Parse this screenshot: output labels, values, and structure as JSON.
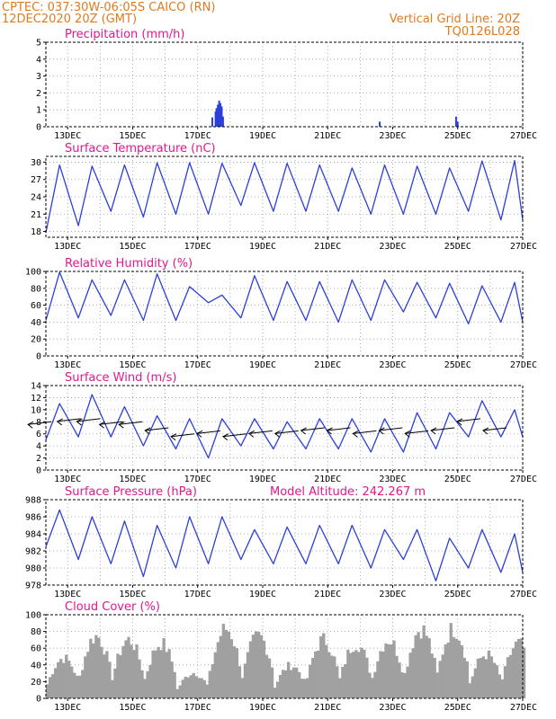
{
  "header": {
    "line1": "CPTEC:   037:30W-06:05S  CAICO (RN)",
    "line2": "12DEC2020 20Z (GMT)",
    "grid_note": "Vertical Grid Line: 20Z",
    "code": "TQ0126L028"
  },
  "colors": {
    "header": "#e07a1f",
    "title": "#e0188f",
    "line": "#2b3fd8",
    "cloud": "#a0a0a0",
    "arrow": "#000000"
  },
  "chart_data": [
    {
      "id": "precip",
      "type": "bar",
      "title": "Precipitation (mm/h)",
      "ylim": [
        0,
        5
      ],
      "yticks": [
        0,
        1,
        2,
        3,
        4,
        5
      ],
      "xlim": [
        12.33,
        27
      ],
      "xticks": [
        "13DEC",
        "15DEC",
        "17DEC",
        "19DEC",
        "21DEC",
        "23DEC",
        "25DEC",
        "27DEC"
      ],
      "x": [
        17.45,
        17.55,
        17.58,
        17.62,
        17.66,
        17.7,
        17.74,
        17.78,
        22.6,
        24.95,
        25.0
      ],
      "values": [
        0.55,
        0.9,
        1.1,
        1.3,
        1.55,
        1.4,
        1.2,
        0.6,
        0.3,
        0.6,
        0.3
      ]
    },
    {
      "id": "temp",
      "type": "line",
      "title": "Surface Temperature (nC)",
      "ylim": [
        17,
        31
      ],
      "yticks": [
        18,
        21,
        24,
        27,
        30
      ],
      "xlim": [
        12.33,
        27
      ],
      "xticks": [
        "13DEC",
        "15DEC",
        "17DEC",
        "19DEC",
        "21DEC",
        "23DEC",
        "25DEC",
        "27DEC"
      ],
      "daily_max": [
        29.5,
        29.3,
        29.5,
        29.9,
        29.9,
        29.8,
        29.9,
        29.8,
        29.5,
        29.0,
        29.5,
        29.3,
        29.0,
        30.2,
        30.3
      ],
      "daily_min": [
        17.8,
        19.0,
        21.5,
        20.5,
        21.0,
        21.0,
        22.5,
        21.5,
        21.5,
        21.5,
        21.0,
        21.0,
        21.0,
        21.5,
        20.0
      ]
    },
    {
      "id": "rh",
      "type": "line",
      "title": "Relative Humidity (%)",
      "ylim": [
        0,
        100
      ],
      "yticks": [
        0,
        20,
        40,
        60,
        80,
        100
      ],
      "xlim": [
        12.33,
        27
      ],
      "xticks": [
        "13DEC",
        "15DEC",
        "17DEC",
        "19DEC",
        "21DEC",
        "23DEC",
        "25DEC",
        "27DEC"
      ],
      "daily_max": [
        99,
        90,
        90,
        97,
        82,
        72,
        95,
        88,
        88,
        90,
        90,
        87,
        86,
        83,
        87
      ],
      "daily_min": [
        42,
        45,
        48,
        42,
        42,
        63,
        45,
        42,
        42,
        40,
        42,
        52,
        45,
        38,
        40
      ]
    },
    {
      "id": "wind",
      "type": "line",
      "title": "Surface Wind (m/s)",
      "ylim": [
        0,
        14
      ],
      "yticks": [
        0,
        2,
        4,
        6,
        8,
        10,
        12,
        14
      ],
      "xlim": [
        12.33,
        27
      ],
      "xticks": [
        "13DEC",
        "15DEC",
        "17DEC",
        "19DEC",
        "21DEC",
        "23DEC",
        "25DEC",
        "27DEC"
      ],
      "daily_max": [
        11.0,
        12.5,
        10.5,
        9.0,
        8.5,
        8.5,
        8.5,
        8.0,
        8.5,
        8.5,
        8.5,
        9.5,
        9.5,
        11.5,
        10.0
      ],
      "daily_min": [
        5.0,
        5.5,
        5.5,
        4.0,
        3.5,
        2.0,
        4.0,
        3.5,
        3.5,
        3.5,
        3.0,
        3.0,
        3.5,
        5.5,
        5.5
      ],
      "arrows_x": [
        12.5,
        13.4,
        14.0,
        14.7,
        15.3,
        16.1,
        16.9,
        17.7,
        18.5,
        19.3,
        20.1,
        20.9,
        21.7,
        22.5,
        23.3,
        24.1,
        24.9,
        25.7,
        26.5
      ],
      "arrows_y": [
        8.0,
        8.5,
        8.5,
        8.0,
        8.0,
        7.0,
        6.0,
        6.5,
        6.0,
        6.5,
        6.5,
        7.0,
        7.0,
        6.5,
        7.0,
        6.5,
        7.0,
        8.5,
        7.0
      ]
    },
    {
      "id": "pressure",
      "type": "line",
      "title": "Surface Pressure (hPa)",
      "subtitle": "Model Altitude: 242.267 m",
      "ylim": [
        978,
        988
      ],
      "yticks": [
        978,
        980,
        982,
        984,
        986,
        988
      ],
      "xlim": [
        12.33,
        27
      ],
      "xticks": [
        "13DEC",
        "15DEC",
        "17DEC",
        "19DEC",
        "21DEC",
        "23DEC",
        "25DEC",
        "27DEC"
      ],
      "daily_max": [
        986.8,
        986.0,
        985.5,
        985.0,
        986.0,
        986.0,
        984.5,
        984.8,
        985.0,
        985.0,
        984.5,
        984.5,
        983.5,
        984.5,
        984.0
      ],
      "daily_min": [
        982.5,
        981.0,
        980.5,
        979.0,
        980.0,
        980.5,
        981.0,
        980.5,
        980.5,
        980.5,
        980.0,
        981.0,
        978.5,
        980.0,
        979.5
      ]
    },
    {
      "id": "cloud",
      "type": "area",
      "title": "Cloud Cover (%)",
      "ylim": [
        0,
        100
      ],
      "yticks": [
        0,
        20,
        40,
        60,
        80,
        100
      ],
      "xlim": [
        12.33,
        27
      ],
      "xticks": [
        "13DEC",
        "15DEC",
        "17DEC",
        "19DEC",
        "21DEC",
        "23DEC",
        "25DEC",
        "27DEC"
      ],
      "daily_peak": [
        55,
        85,
        80,
        75,
        35,
        95,
        85,
        45,
        80,
        75,
        80,
        95,
        95,
        60,
        75
      ]
    }
  ]
}
